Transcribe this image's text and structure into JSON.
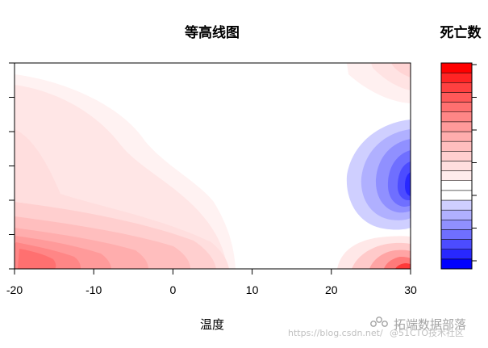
{
  "chart_data": {
    "type": "heatmap",
    "subtype": "filled-contour",
    "title": "等高线图",
    "xlabel": "温度",
    "ylabel": "",
    "xlim": [
      -20,
      30
    ],
    "x_ticks": [
      -20,
      -10,
      0,
      10,
      20,
      30
    ],
    "y_ticks_count": 7,
    "y_tick_labels_visible": false,
    "colorbar": {
      "title": "死亡数",
      "levels": 21,
      "colors": [
        "#0000ff",
        "#2828ff",
        "#4c4cff",
        "#6f6fff",
        "#9090ff",
        "#b0b0ff",
        "#cfcfff",
        "#ffffff",
        "#ffffff",
        "#ffecec",
        "#ffdede",
        "#ffcfcf",
        "#ffbebe",
        "#ffadad",
        "#ff9a9a",
        "#ff8686",
        "#ff7070",
        "#ff5959",
        "#ff4040",
        "#ff2424",
        "#ff0000"
      ]
    },
    "grid": false,
    "features": [
      {
        "region": "bottom-left",
        "sign": "positive",
        "x": [
          -20,
          7
        ],
        "intensity": "high"
      },
      {
        "region": "left band",
        "sign": "positive",
        "x": [
          -20,
          -2
        ],
        "intensity": "low"
      },
      {
        "region": "right-middle",
        "sign": "negative",
        "x": [
          22,
          30
        ],
        "intensity": "high"
      },
      {
        "region": "bottom-right",
        "sign": "positive",
        "x": [
          21,
          30
        ],
        "intensity": "high"
      },
      {
        "region": "top-right",
        "sign": "positive",
        "x": [
          22,
          30
        ],
        "intensity": "low"
      }
    ]
  },
  "watermark": {
    "brand": "拓端数据部落",
    "url": "https://blog.csdn.net/",
    "attribution": "@51CTO技术社区"
  }
}
